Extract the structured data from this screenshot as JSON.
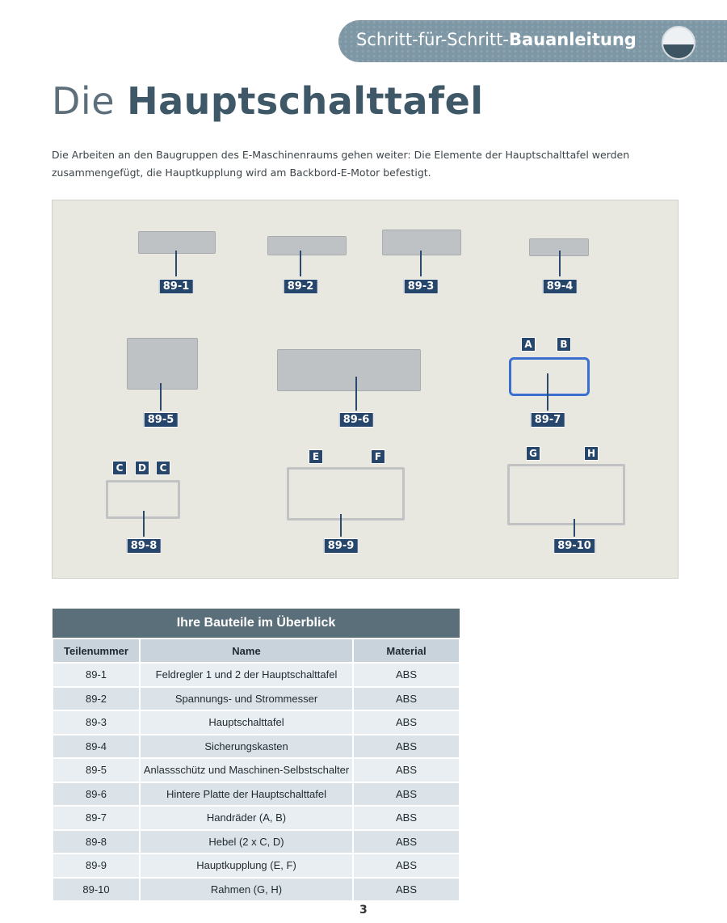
{
  "header": {
    "banner_regular": "Schritt-für-Schritt-",
    "banner_bold": "Bauanleitung"
  },
  "title": {
    "regular": "Die ",
    "bold": "Hauptschalttafel"
  },
  "intro": "Die Arbeiten an den Baugruppen des E-Maschinenraums gehen weiter: Die Elemente der Hauptschalttafel werden zusammengefügt, die Hauptkupplung wird am Backbord-E-Motor befestigt.",
  "photo": {
    "labels": [
      "89-1",
      "89-2",
      "89-3",
      "89-4",
      "89-5",
      "89-6",
      "89-7",
      "89-8",
      "89-9",
      "89-10"
    ],
    "letters": [
      "A",
      "B",
      "C",
      "D",
      "C",
      "E",
      "F",
      "G",
      "H"
    ],
    "label_color": "#27466c"
  },
  "table": {
    "caption": "Ihre Bauteile im Überblick",
    "headers": [
      "Teilenummer",
      "Name",
      "Material"
    ],
    "rows": [
      [
        "89-1",
        "Feldregler 1 und 2 der Hauptschalttafel",
        "ABS"
      ],
      [
        "89-2",
        "Spannungs- und Strommesser",
        "ABS"
      ],
      [
        "89-3",
        "Hauptschalttafel",
        "ABS"
      ],
      [
        "89-4",
        "Sicherungskasten",
        "ABS"
      ],
      [
        "89-5",
        "Anlassschütz und Maschinen-Selbstschalter",
        "ABS"
      ],
      [
        "89-6",
        "Hintere Platte der Hauptschalttafel",
        "ABS"
      ],
      [
        "89-7",
        "Handräder (A, B)",
        "ABS"
      ],
      [
        "89-8",
        "Hebel (2 x C, D)",
        "ABS"
      ],
      [
        "89-9",
        "Hauptkupplung (E, F)",
        "ABS"
      ],
      [
        "89-10",
        "Rahmen (G, H)",
        "ABS"
      ]
    ]
  },
  "page_number": "3"
}
